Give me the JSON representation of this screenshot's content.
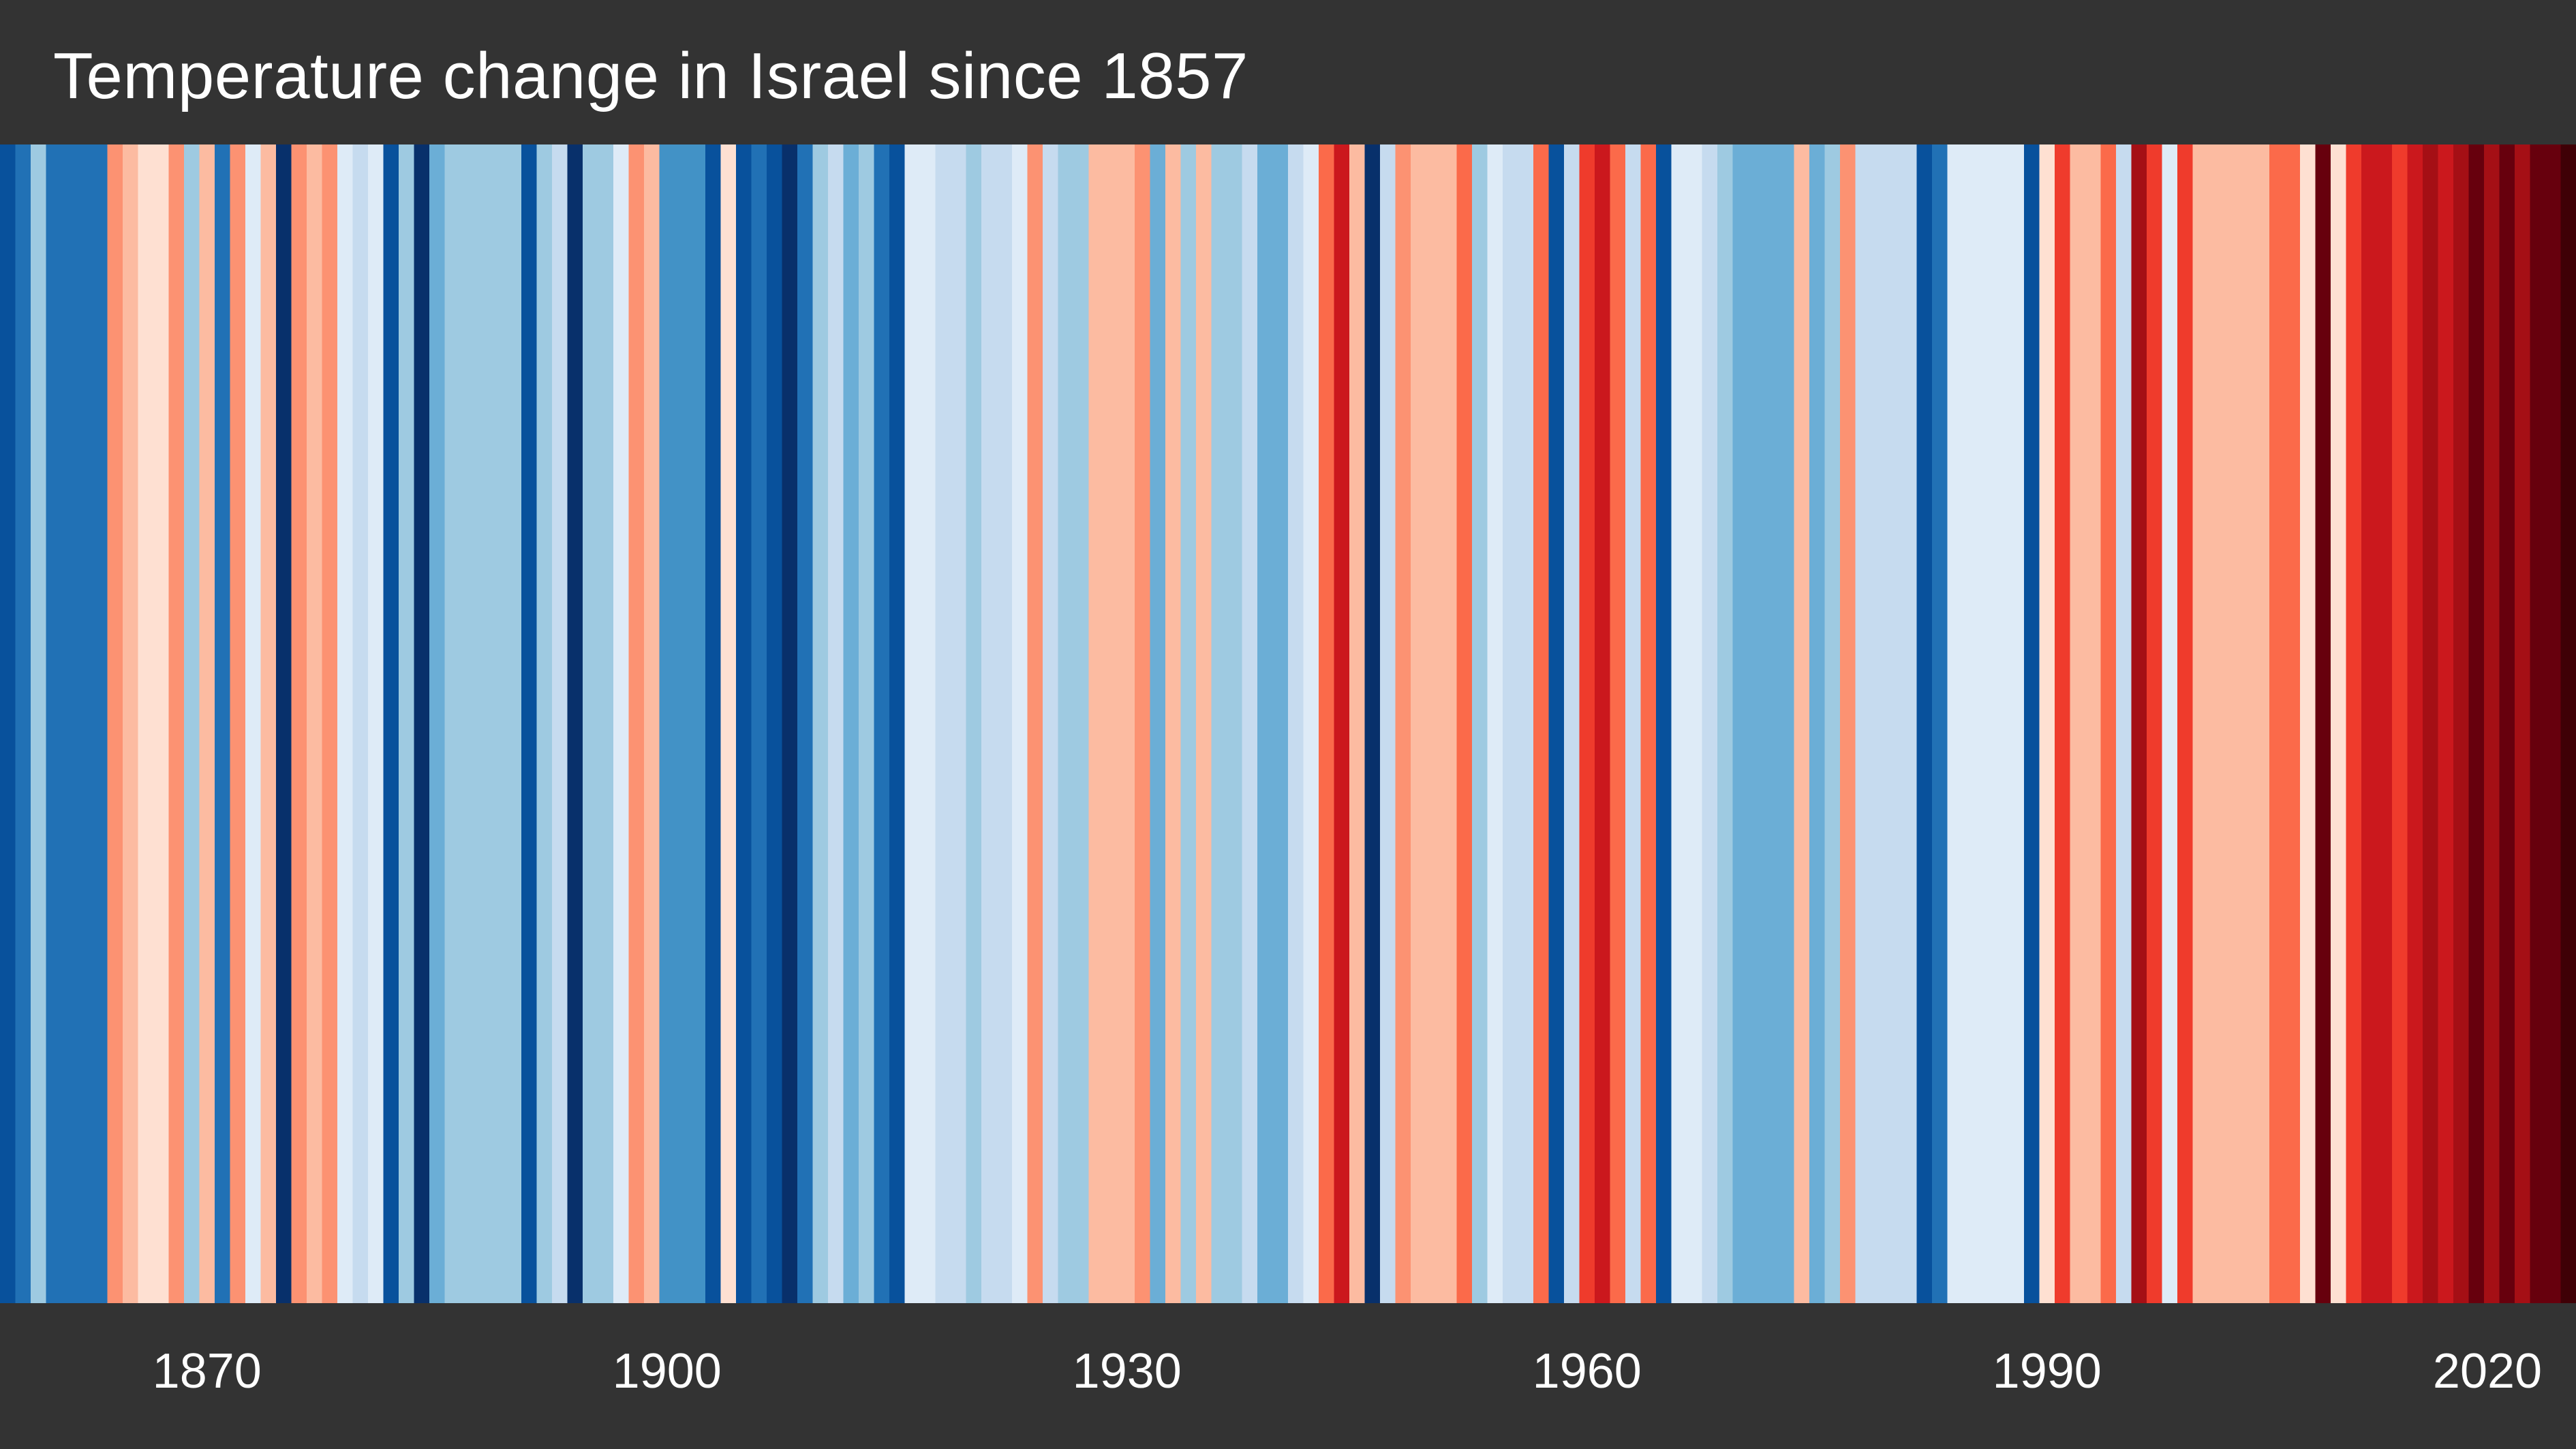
{
  "chart_data": {
    "type": "heatmap",
    "title": "Temperature change in Israel since 1857",
    "x_start": 1857,
    "x_end": 2024,
    "xticks": [
      1870,
      1900,
      1930,
      1960,
      1990,
      2020
    ],
    "colors": {
      "background": "#333333",
      "text": "#ffffff",
      "palette": [
        "#08306b",
        "#08519c",
        "#2171b5",
        "#4292c6",
        "#6baed6",
        "#9ecae1",
        "#c6dbef",
        "#deebf7",
        "#fee0d2",
        "#fcbba1",
        "#fc9272",
        "#fb6a4a",
        "#ef3b2c",
        "#cb181d",
        "#a50f15",
        "#67000d",
        "#3f0006"
      ]
    },
    "levels": [
      1,
      2,
      5,
      2,
      2,
      2,
      2,
      10,
      9,
      8,
      8,
      10,
      5,
      9,
      2,
      10,
      7,
      9,
      0,
      10,
      9,
      10,
      7,
      6,
      7,
      1,
      5,
      0,
      4,
      5,
      5,
      5,
      5,
      5,
      1,
      5,
      6,
      0,
      5,
      5,
      7,
      10,
      9,
      3,
      3,
      3,
      1,
      8,
      1,
      2,
      1,
      0,
      2,
      5,
      6,
      4,
      5,
      2,
      1,
      7,
      7,
      6,
      6,
      5,
      6,
      6,
      7,
      10,
      6,
      5,
      5,
      9,
      9,
      9,
      10,
      4,
      9,
      5,
      9,
      5,
      5,
      6,
      4,
      4,
      6,
      7,
      11,
      13,
      9,
      0,
      6,
      10,
      9,
      9,
      9,
      11,
      5,
      7,
      6,
      6,
      11,
      1,
      6,
      12,
      13,
      11,
      6,
      11,
      1,
      7,
      7,
      6,
      5,
      4,
      4,
      4,
      4,
      9,
      4,
      5,
      10,
      6,
      6,
      6,
      6,
      1,
      2,
      7,
      7,
      7,
      7,
      7,
      1,
      8,
      12,
      9,
      9,
      11,
      6,
      14,
      12,
      7,
      12,
      9,
      9,
      9,
      9,
      9,
      11,
      11,
      8,
      15,
      8,
      12,
      13,
      13,
      12,
      13,
      14,
      13,
      14,
      15,
      14,
      15,
      14,
      15,
      15,
      16
    ]
  }
}
